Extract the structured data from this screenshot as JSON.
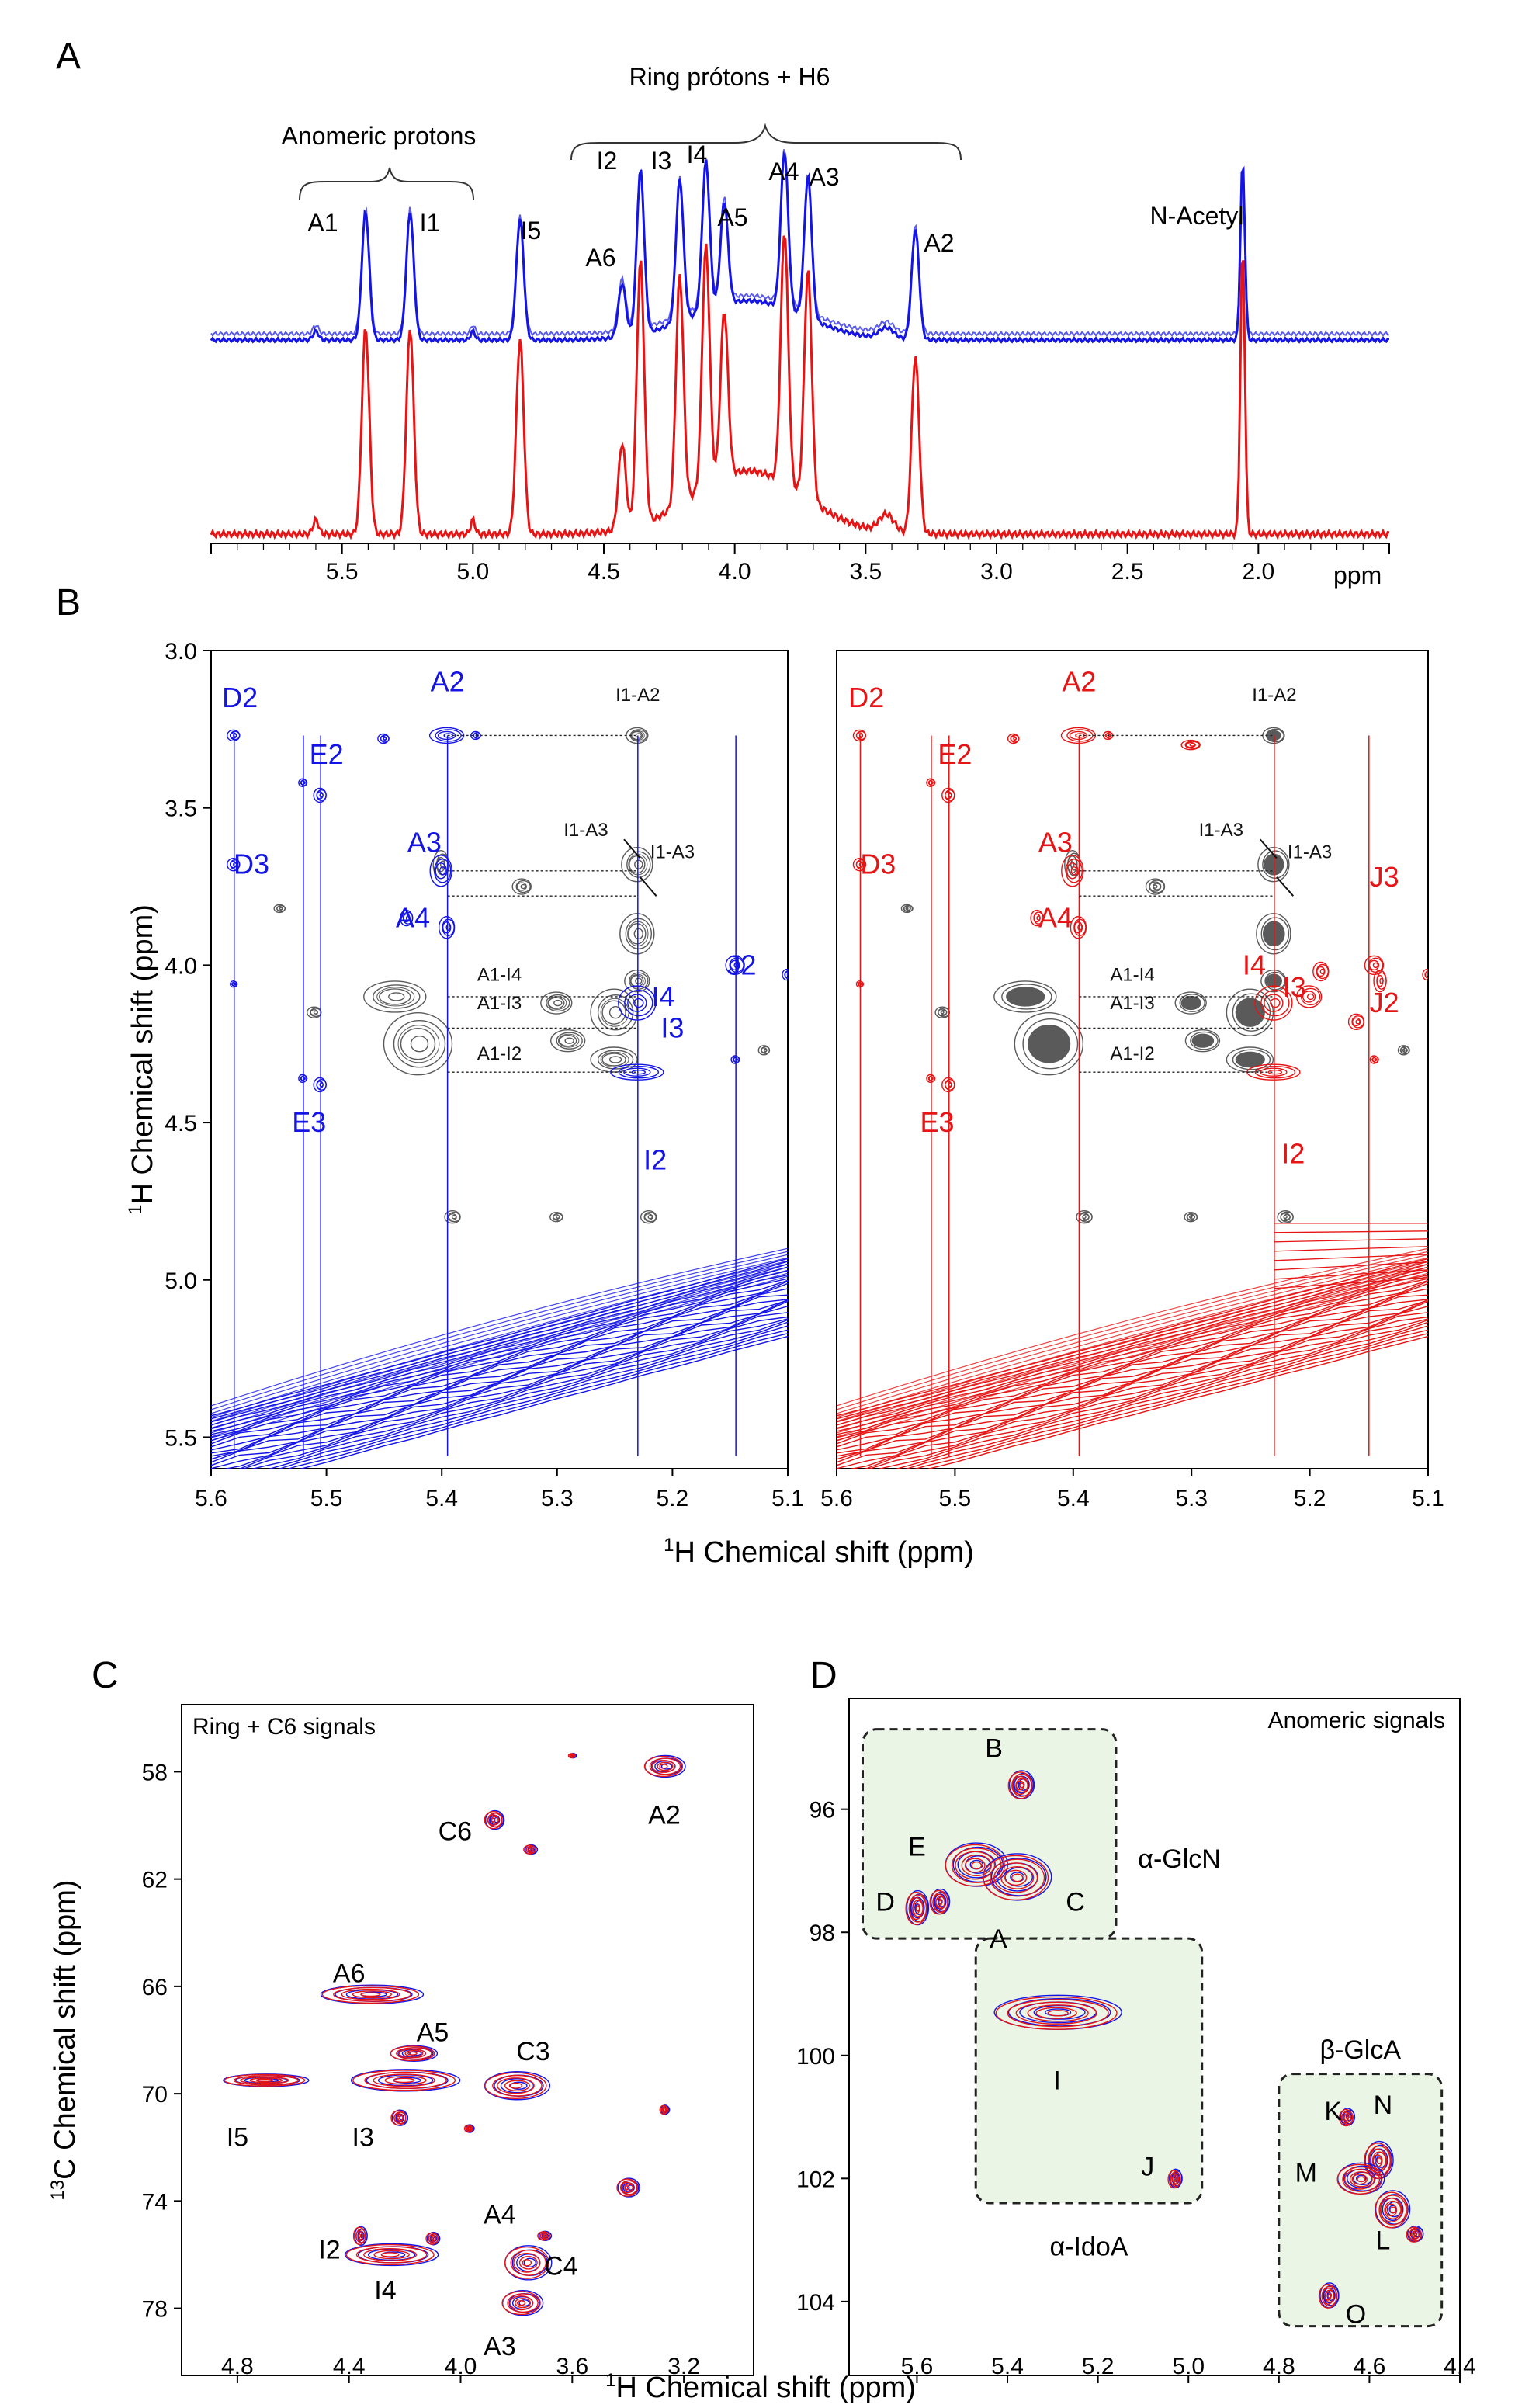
{
  "colors": {
    "blue": "#1414e6",
    "red": "#e61414",
    "gray": "#5a5a5a",
    "panelbg": "#eaf5e6",
    "black": "#000000"
  },
  "panel_letters": [
    "A",
    "B",
    "C",
    "D"
  ],
  "chart_data": [
    {
      "id": "A",
      "type": "line",
      "title": "",
      "xlabel": "ppm",
      "xlim": [
        6.0,
        1.5
      ],
      "ticks": [
        "5.5",
        "5.0",
        "4.5",
        "4.0",
        "3.5",
        "3.0",
        "2.5",
        "2.0"
      ],
      "tick_values": [
        5.5,
        5.0,
        4.5,
        4.0,
        3.5,
        3.0,
        2.5,
        2.0
      ],
      "group_labels": [
        "Anomeric protons",
        "Ring prótons + H6"
      ],
      "peaks": [
        {
          "label": "A1",
          "ppm": 5.41,
          "height": 0.72
        },
        {
          "label": "I1",
          "ppm": 5.24,
          "height": 0.72
        },
        {
          "label": "I5",
          "ppm": 4.82,
          "height": 0.68
        },
        {
          "label": "A6",
          "ppm": 4.43,
          "height": 0.3
        },
        {
          "label": "I2",
          "ppm": 4.36,
          "height": 0.92
        },
        {
          "label": "I3",
          "ppm": 4.21,
          "height": 0.8
        },
        {
          "label": "I4",
          "ppm": 4.11,
          "height": 0.84
        },
        {
          "label": "A5",
          "ppm": 4.04,
          "height": 0.58
        },
        {
          "label": "A4",
          "ppm": 3.81,
          "height": 0.88
        },
        {
          "label": "A3",
          "ppm": 3.72,
          "height": 0.8
        },
        {
          "label": "A2",
          "ppm": 3.31,
          "height": 0.62
        },
        {
          "label": "N-Acetyl",
          "ppm": 2.06,
          "height": 1.0
        }
      ],
      "series": [
        {
          "name": "blue spectrum",
          "color": "blue"
        },
        {
          "name": "red spectrum",
          "color": "red"
        }
      ]
    },
    {
      "id": "B",
      "type": "scatter",
      "xlabel": "1H Chemical shift (ppm)",
      "xlabel_sup": "1",
      "xlabel_rest": "H Chemical shift (ppm)",
      "ylabel_sup": "1",
      "ylabel_rest": "H Chemical shift (ppm)",
      "xlim": [
        5.6,
        5.1
      ],
      "ylim": [
        3.0,
        5.6
      ],
      "xticks": [
        "5.6",
        "5.5",
        "5.4",
        "5.3",
        "5.2",
        "5.1"
      ],
      "xtick_values": [
        5.6,
        5.5,
        5.4,
        5.3,
        5.2,
        5.1
      ],
      "yticks": [
        "3.0",
        "3.5",
        "4.0",
        "4.5",
        "5.0",
        "5.5"
      ],
      "ytick_values": [
        3.0,
        3.5,
        4.0,
        4.5,
        5.0,
        5.5
      ],
      "left_labels": [
        {
          "label": "D2",
          "x": 5.575,
          "y": 3.15
        },
        {
          "label": "D3",
          "x": 5.565,
          "y": 3.68
        },
        {
          "label": "E2",
          "x": 5.5,
          "y": 3.33
        },
        {
          "label": "E3",
          "x": 5.515,
          "y": 4.5
        },
        {
          "label": "A2",
          "x": 5.395,
          "y": 3.1
        },
        {
          "label": "A3",
          "x": 5.415,
          "y": 3.61
        },
        {
          "label": "A4",
          "x": 5.425,
          "y": 3.85
        },
        {
          "label": "I4",
          "x": 5.208,
          "y": 4.1
        },
        {
          "label": "I3",
          "x": 5.2,
          "y": 4.2
        },
        {
          "label": "J2",
          "x": 5.14,
          "y": 4.0
        },
        {
          "label": "I2",
          "x": 5.215,
          "y": 4.62
        }
      ],
      "right_labels": [
        {
          "label": "D2",
          "x": 5.575,
          "y": 3.15
        },
        {
          "label": "D3",
          "x": 5.565,
          "y": 3.68
        },
        {
          "label": "E2",
          "x": 5.5,
          "y": 3.33
        },
        {
          "label": "E3",
          "x": 5.515,
          "y": 4.5
        },
        {
          "label": "A2",
          "x": 5.395,
          "y": 3.1
        },
        {
          "label": "A3",
          "x": 5.415,
          "y": 3.61
        },
        {
          "label": "A4",
          "x": 5.415,
          "y": 3.85
        },
        {
          "label": "I4",
          "x": 5.247,
          "y": 4.0
        },
        {
          "label": "I3",
          "x": 5.213,
          "y": 4.07
        },
        {
          "label": "J3",
          "x": 5.137,
          "y": 3.72
        },
        {
          "label": "J2",
          "x": 5.137,
          "y": 4.12
        },
        {
          "label": "I2",
          "x": 5.214,
          "y": 4.6
        }
      ],
      "cross_peaks": [
        "I1-A2",
        "I1-A3",
        "I1-A3",
        "A1-I4",
        "A1-I3",
        "A1-I2"
      ]
    },
    {
      "id": "C",
      "type": "scatter",
      "title": "Ring + C6 signals",
      "xlabel_sup": "1",
      "xlabel_rest": "H Chemical shift (ppm)",
      "ylabel_sup": "13",
      "ylabel_rest": "C Chemical shift (ppm)",
      "xlim": [
        5.0,
        2.95
      ],
      "ylim": [
        55.5,
        80.5
      ],
      "xticks": [
        "4.8",
        "4.4",
        "4.0",
        "3.6",
        "3.2"
      ],
      "xtick_values": [
        4.8,
        4.4,
        4.0,
        3.6,
        3.2
      ],
      "yticks": [
        "58",
        "62",
        "66",
        "70",
        "74",
        "78"
      ],
      "ytick_values": [
        58,
        62,
        66,
        70,
        74,
        78
      ],
      "points": [
        {
          "label": "A2",
          "x": 3.27,
          "y": 57.8
        },
        {
          "label": "C6",
          "x": 3.88,
          "y": 59.8
        },
        {
          "label": "A6",
          "x": 4.32,
          "y": 66.3
        },
        {
          "label": "A5",
          "x": 4.17,
          "y": 68.5
        },
        {
          "label": "C3",
          "x": 3.78,
          "y": 69.7
        },
        {
          "label": "I5",
          "x": 4.78,
          "y": 69.5
        },
        {
          "label": "I3",
          "x": 4.28,
          "y": 69.6
        },
        {
          "label": "I2",
          "x": 4.33,
          "y": 75.8
        },
        {
          "label": "I4",
          "x": 4.13,
          "y": 76.0
        },
        {
          "label": "A4",
          "x": 3.82,
          "y": 76.0
        },
        {
          "label": "C4",
          "x": 3.7,
          "y": 76.1
        },
        {
          "label": "A3",
          "x": 3.77,
          "y": 77.5
        }
      ]
    },
    {
      "id": "D",
      "type": "scatter",
      "title": "Anomeric signals",
      "xlabel_sup": "1",
      "xlabel_rest": "H Chemical shift (ppm)",
      "xlim": [
        5.75,
        4.4
      ],
      "ylim": [
        94.2,
        105.2
      ],
      "xticks": [
        "5.6",
        "5.4",
        "5.2",
        "5.0",
        "4.8",
        "4.6",
        "4.4"
      ],
      "xtick_values": [
        5.6,
        5.4,
        5.2,
        5.0,
        4.8,
        4.6,
        4.4
      ],
      "yticks": [
        "96",
        "98",
        "100",
        "102",
        "104"
      ],
      "ytick_values": [
        96,
        98,
        100,
        102,
        104
      ],
      "groups": [
        "α-GlcN",
        "α-IdoA",
        "β-GlcA"
      ],
      "points": [
        {
          "label": "B",
          "x": 5.37,
          "y": 95.6
        },
        {
          "label": "E",
          "x": 5.52,
          "y": 96.8
        },
        {
          "label": "D",
          "x": 5.6,
          "y": 97.6
        },
        {
          "label": "C",
          "x": 5.33,
          "y": 97.2
        },
        {
          "label": "A",
          "x": 5.43,
          "y": 97.3
        },
        {
          "label": "I",
          "x": 5.29,
          "y": 99.3
        },
        {
          "label": "J",
          "x": 5.03,
          "y": 102.0
        },
        {
          "label": "K",
          "x": 4.65,
          "y": 101.0
        },
        {
          "label": "N",
          "x": 4.58,
          "y": 101.6
        },
        {
          "label": "M",
          "x": 4.63,
          "y": 102.0
        },
        {
          "label": "L",
          "x": 4.56,
          "y": 102.6
        },
        {
          "label": "O",
          "x": 4.69,
          "y": 103.9
        }
      ]
    }
  ]
}
